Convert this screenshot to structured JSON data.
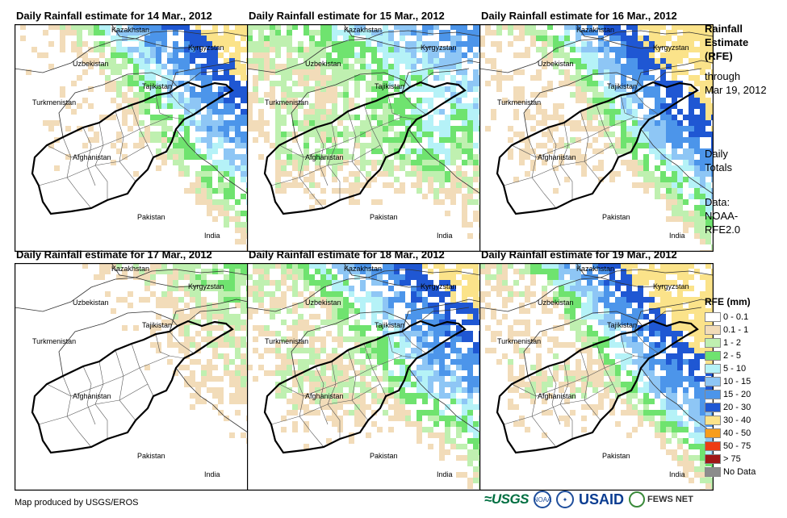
{
  "panels": [
    {
      "title": "Daily Rainfall estimate for 14 Mar., 2012"
    },
    {
      "title": "Daily Rainfall estimate for 15 Mar., 2012"
    },
    {
      "title": "Daily Rainfall estimate for 16 Mar., 2012"
    },
    {
      "title": "Daily Rainfall estimate for 17 Mar., 2012"
    },
    {
      "title": "Daily Rainfall estimate for 18 Mar., 2012"
    },
    {
      "title": "Daily Rainfall estimate for 19 Mar., 2012"
    }
  ],
  "country_labels": {
    "kazakhstan": "Kazakhstan",
    "kyrgyzstan": "Kyrgyzstan",
    "uzbekistan": "Uzbekistan",
    "tajikistan": "Tajikistan",
    "turkmenistan": "Turkmenistan",
    "afghanistan": "Afghanistan",
    "pakistan": "Pakistan",
    "india": "India"
  },
  "side_info": {
    "title_lines": [
      "Rainfall",
      "Estimate",
      "(RFE)"
    ],
    "through_lines": [
      "through",
      "Mar 19, 2012"
    ],
    "totals_lines": [
      "Daily",
      "Totals"
    ],
    "data_lines": [
      "Data:",
      "NOAA-",
      "RFE2.0"
    ]
  },
  "legend": {
    "title": "RFE (mm)",
    "items": [
      {
        "label": "0 - 0.1",
        "color": "#ffffff"
      },
      {
        "label": "0.1 - 1",
        "color": "#f2dcb9"
      },
      {
        "label": "1 - 2",
        "color": "#bff0b0"
      },
      {
        "label": "2 - 5",
        "color": "#6fe36f"
      },
      {
        "label": "5 - 10",
        "color": "#b5f2f7"
      },
      {
        "label": "10 - 15",
        "color": "#8ec6f5"
      },
      {
        "label": "15 - 20",
        "color": "#4c95ea"
      },
      {
        "label": "20 - 30",
        "color": "#1f57d3"
      },
      {
        "label": "30 - 40",
        "color": "#fbe38a"
      },
      {
        "label": "40 - 50",
        "color": "#f79d1c"
      },
      {
        "label": "50 - 75",
        "color": "#ee3b13"
      },
      {
        "label": "> 75",
        "color": "#a01818"
      },
      {
        "label": "No Data",
        "color": "#8c8c8c"
      }
    ]
  },
  "footer": {
    "credit": "Map produced by USGS/EROS",
    "logos": {
      "usgs": "≈USGS",
      "noaa": "NOAA",
      "usaid": "USAID",
      "fews": "FEWS NET"
    }
  },
  "panel_rain_intensity": [
    {
      "ne_heavy": 1.0,
      "green": 0.35
    },
    {
      "ne_heavy": 0.4,
      "green": 1.0
    },
    {
      "ne_heavy": 1.2,
      "green": 0.55
    },
    {
      "ne_heavy": 0.25,
      "green": 0.15
    },
    {
      "ne_heavy": 0.9,
      "green": 0.8
    },
    {
      "ne_heavy": 1.3,
      "green": 0.65
    }
  ]
}
